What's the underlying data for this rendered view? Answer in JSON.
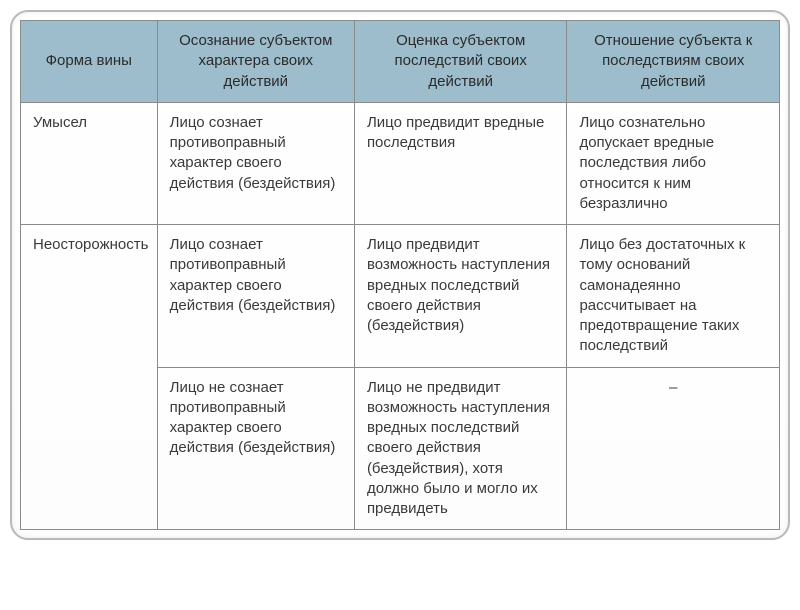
{
  "table": {
    "header_bg": "#9dbdcc",
    "border_color": "#8a8a8a",
    "frame_border": "#b9b9b9",
    "text_color": "#3a3a3a",
    "columns": [
      "Форма вины",
      "Осознание субъектом характера своих действий",
      "Оценка субъектом последствий своих действий",
      "Отношение субъекта к последствиям своих действий"
    ],
    "rows": [
      {
        "label": "Умысел",
        "cells": [
          "Лицо сознает противоправный характер своего действия (бездействия)",
          "Лицо предвидит вредные последствия",
          "Лицо сознательно допускает вредные последствия либо относится к ним безразлично"
        ]
      },
      {
        "label": "Неосторожность",
        "label_rowspan": 2,
        "cells": [
          "Лицо сознает противоправный характер своего действия (бездействия)",
          "Лицо предвидит возможность наступления вредных последствий своего действия (бездействия)",
          "Лицо без достаточных к тому оснований самонадеянно рассчитывает на предотвращение таких последствий"
        ]
      },
      {
        "cells": [
          "Лицо не сознает противоправный характер своего действия (бездействия)",
          "Лицо не предвидит возможность наступления вредных последствий своего действия (бездействия), хотя должно было и могло их предвидеть",
          "–"
        ]
      }
    ]
  }
}
